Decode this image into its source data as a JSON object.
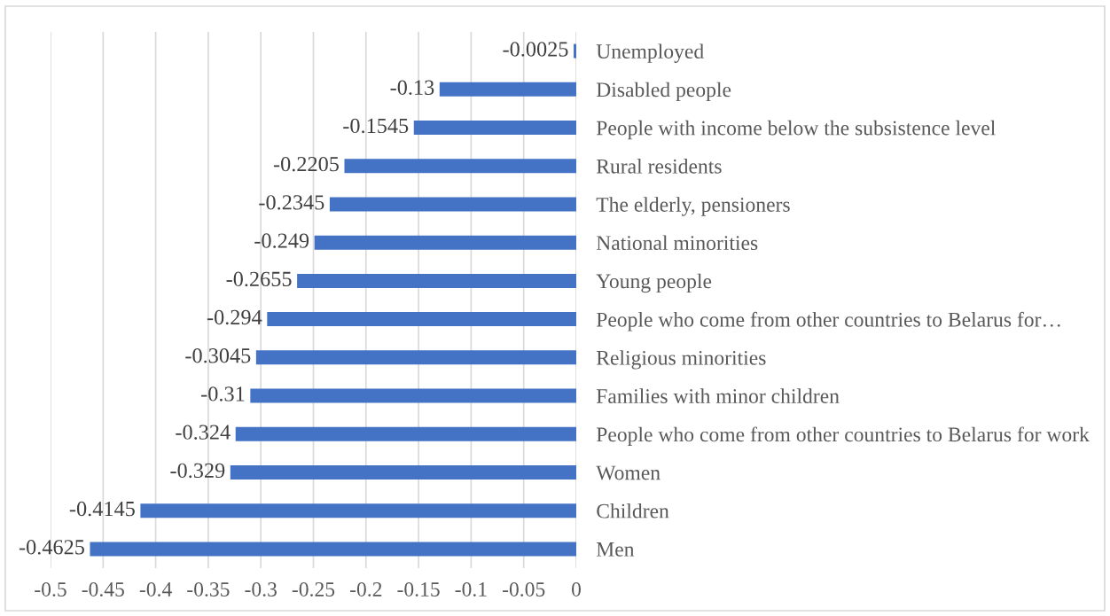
{
  "chart_data": {
    "type": "bar",
    "orientation": "horizontal",
    "categories": [
      "Unemployed",
      "Disabled people",
      "People with income below the subsistence level",
      "Rural residents",
      "The elderly, pensioners",
      "National minorities",
      "Young people",
      "People who come from other countries to Belarus for…",
      "Religious minorities",
      "Families with minor children",
      "People who come from other countries to Belarus for work",
      "Women",
      "Children",
      "Men"
    ],
    "values": [
      -0.0025,
      -0.13,
      -0.1545,
      -0.2205,
      -0.2345,
      -0.249,
      -0.2655,
      -0.294,
      -0.3045,
      -0.31,
      -0.324,
      -0.329,
      -0.4145,
      -0.4625
    ],
    "color": "#4472c4",
    "xlim": [
      -0.5,
      0
    ],
    "xticks": [
      -0.5,
      -0.45,
      -0.4,
      -0.35,
      -0.3,
      -0.25,
      -0.2,
      -0.15,
      -0.1,
      -0.05,
      0
    ],
    "grid": "x",
    "data_labels": true
  }
}
